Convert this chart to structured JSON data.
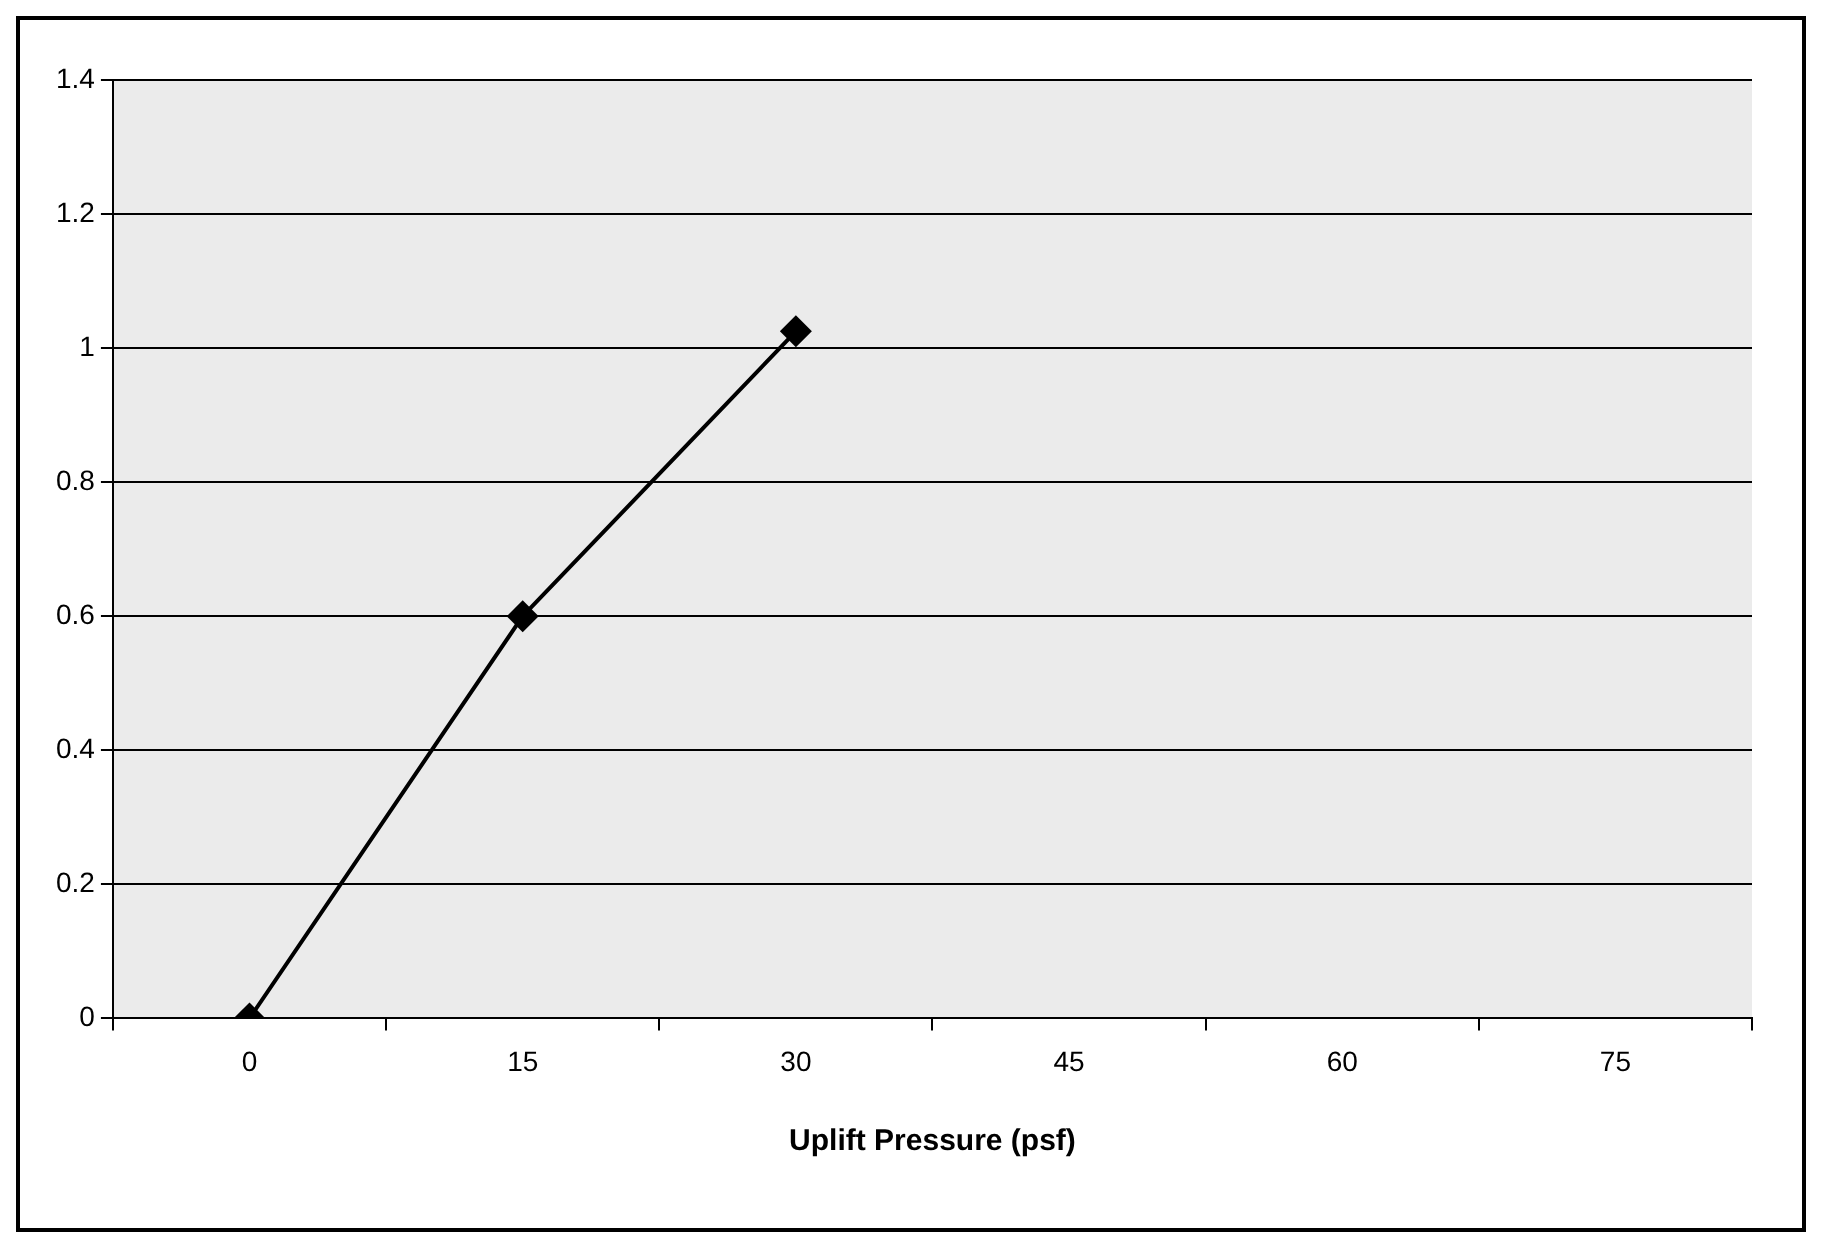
{
  "chart_data": {
    "type": "line",
    "xlabel": "Uplift Pressure (psf)",
    "categories": [
      "0",
      "15",
      "30",
      "45",
      "60",
      "75"
    ],
    "series": [
      {
        "color": "#000000",
        "values": [
          0,
          0.6,
          1.025,
          null,
          null,
          null
        ]
      }
    ],
    "ylim": [
      0,
      1.4
    ],
    "yticks": [
      0,
      0.2,
      0.4,
      0.6,
      0.8,
      1,
      1.2,
      1.4
    ],
    "grid": "y",
    "legend": false,
    "marker": "diamond",
    "line_style": "solid"
  }
}
